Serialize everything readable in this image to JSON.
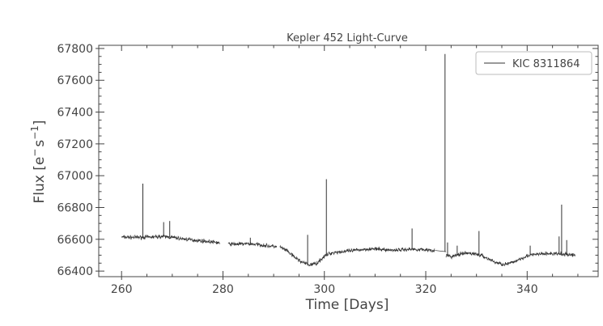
{
  "chart_data": {
    "type": "line",
    "title": "Kepler 452 Light-Curve",
    "xlabel": "Time [Days]",
    "ylabel": {
      "main": "Flux [e",
      "sup1": "−",
      "mid": "s",
      "sup2": "−1",
      "end": "]"
    },
    "xlim": [
      255.5,
      354
    ],
    "ylim": [
      66365,
      67820
    ],
    "xticks": [
      260,
      280,
      300,
      320,
      340
    ],
    "yticks": [
      66400,
      66600,
      66800,
      67000,
      67200,
      67400,
      67600,
      67800
    ],
    "legend": {
      "position": "top-right",
      "entries": [
        "KIC 8311864"
      ]
    },
    "grid": false,
    "colors": {
      "line": "#333333",
      "axis": "#444444"
    },
    "series": [
      {
        "name": "KIC 8311864",
        "segments": [
          {
            "x": [
              260.0,
              262.0,
              264.0,
              266.0,
              268.0,
              270.0,
              272.0,
              274.0,
              276.0,
              278.0,
              279.4
            ],
            "y": [
              66614,
              66612,
              66613,
              66614,
              66618,
              66612,
              66603,
              66596,
              66590,
              66582,
              66578
            ]
          },
          {
            "x": [
              281.0,
              283.0,
              285.0,
              287.0,
              289.0,
              290.6
            ],
            "y": [
              66570,
              66570,
              66572,
              66567,
              66558,
              66554
            ]
          },
          {
            "x": [
              291.2,
              292.5,
              294.0,
              295.5,
              297.0,
              298.5,
              300.0,
              301.0,
              302.0,
              303.5,
              305.0,
              307.0,
              309.0,
              311.0,
              313.0,
              315.0,
              317.0,
              319.0,
              321.0,
              321.8
            ],
            "y": [
              66552,
              66530,
              66490,
              66458,
              66438,
              66450,
              66492,
              66510,
              66518,
              66522,
              66526,
              66534,
              66540,
              66537,
              66532,
              66534,
              66538,
              66536,
              66532,
              66530
            ]
          },
          {
            "x": [
              321.8,
              324.0
            ],
            "y": [
              66530,
              66522
            ]
          },
          {
            "x": [
              324.0,
              325.0,
              326.5,
              328.0,
              329.5,
              331.0,
              332.5,
              334.0,
              335.5,
              337.0,
              338.5,
              340.0,
              342.0,
              344.0,
              346.0,
              348.0,
              349.5
            ],
            "y": [
              66500,
              66490,
              66504,
              66512,
              66510,
              66498,
              66474,
              66452,
              66442,
              66452,
              66476,
              66496,
              66506,
              66510,
              66508,
              66504,
              66500
            ]
          }
        ],
        "spikes": [
          {
            "x": 264.2,
            "y": 66950
          },
          {
            "x": 268.3,
            "y": 66708
          },
          {
            "x": 269.5,
            "y": 66715
          },
          {
            "x": 285.4,
            "y": 66610
          },
          {
            "x": 296.7,
            "y": 66628
          },
          {
            "x": 300.4,
            "y": 66978
          },
          {
            "x": 317.3,
            "y": 66668
          },
          {
            "x": 323.8,
            "y": 67765
          },
          {
            "x": 324.3,
            "y": 66580
          },
          {
            "x": 326.2,
            "y": 66560
          },
          {
            "x": 330.5,
            "y": 66652
          },
          {
            "x": 340.6,
            "y": 66560
          },
          {
            "x": 346.3,
            "y": 66618
          },
          {
            "x": 346.8,
            "y": 66818
          },
          {
            "x": 347.8,
            "y": 66595
          }
        ]
      }
    ]
  }
}
